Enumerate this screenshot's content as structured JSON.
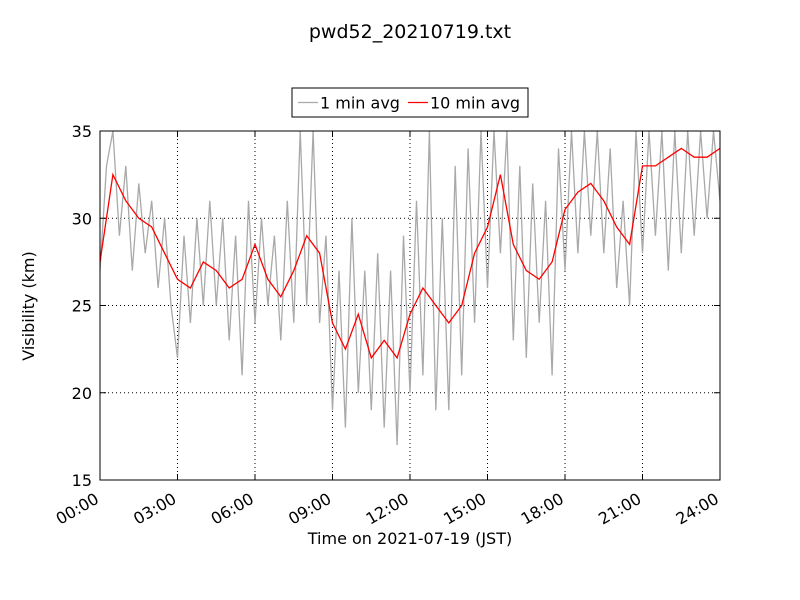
{
  "chart_data": {
    "type": "line",
    "title": "pwd52_20210719.txt",
    "xlabel": "Time on 2021-07-19 (JST)",
    "ylabel": "Visibility (km)",
    "xlim": [
      0,
      24
    ],
    "ylim": [
      15,
      35
    ],
    "xticks": [
      {
        "value": 0,
        "label": "00:00"
      },
      {
        "value": 3,
        "label": "03:00"
      },
      {
        "value": 6,
        "label": "06:00"
      },
      {
        "value": 9,
        "label": "09:00"
      },
      {
        "value": 12,
        "label": "12:00"
      },
      {
        "value": 15,
        "label": "15:00"
      },
      {
        "value": 18,
        "label": "18:00"
      },
      {
        "value": 21,
        "label": "21:00"
      },
      {
        "value": 24,
        "label": "24:00"
      }
    ],
    "yticks": [
      15,
      20,
      25,
      30,
      35
    ],
    "grid": true,
    "legend": "top",
    "series": [
      {
        "name": "1 min avg",
        "color": "#a9a9a9",
        "x": [
          0,
          0.25,
          0.5,
          0.75,
          1,
          1.25,
          1.5,
          1.75,
          2,
          2.25,
          2.5,
          2.75,
          3,
          3.25,
          3.5,
          3.75,
          4,
          4.25,
          4.5,
          4.75,
          5,
          5.25,
          5.5,
          5.75,
          6,
          6.25,
          6.5,
          6.75,
          7,
          7.25,
          7.5,
          7.75,
          8,
          8.25,
          8.5,
          8.75,
          9,
          9.25,
          9.5,
          9.75,
          10,
          10.25,
          10.5,
          10.75,
          11,
          11.25,
          11.5,
          11.75,
          12,
          12.25,
          12.5,
          12.75,
          13,
          13.25,
          13.5,
          13.75,
          14,
          14.25,
          14.5,
          14.75,
          15,
          15.25,
          15.5,
          15.75,
          16,
          16.25,
          16.5,
          16.75,
          17,
          17.25,
          17.5,
          17.75,
          18,
          18.25,
          18.5,
          18.75,
          19,
          19.25,
          19.5,
          19.75,
          20,
          20.25,
          20.5,
          20.75,
          21,
          21.25,
          21.5,
          21.75,
          22,
          22.25,
          22.5,
          22.75,
          23,
          23.25,
          23.5,
          23.75,
          24
        ],
        "values": [
          27,
          33,
          35,
          29,
          33,
          27,
          32,
          28,
          31,
          26,
          30,
          25,
          22,
          29,
          24,
          30,
          25,
          31,
          25,
          30,
          23,
          29,
          21,
          31,
          24,
          30,
          25,
          29,
          23,
          31,
          24,
          35,
          25,
          35,
          24,
          29,
          19,
          27,
          18,
          30,
          20,
          27,
          19,
          28,
          18,
          27,
          17,
          29,
          20,
          31,
          21,
          35,
          19,
          30,
          19,
          33,
          21,
          34,
          24,
          35,
          26,
          35,
          28,
          35,
          23,
          33,
          22,
          32,
          24,
          31,
          21,
          34,
          27,
          35,
          28,
          35,
          29,
          35,
          28,
          34,
          26,
          31,
          25,
          35,
          28,
          35,
          29,
          35,
          27,
          35,
          28,
          35,
          29,
          35,
          30,
          35,
          31
        ]
      },
      {
        "name": "10 min avg",
        "color": "#ff0000",
        "x": [
          0,
          0.5,
          1,
          1.5,
          2,
          2.5,
          3,
          3.5,
          4,
          4.5,
          5,
          5.5,
          6,
          6.5,
          7,
          7.5,
          8,
          8.5,
          9,
          9.5,
          10,
          10.5,
          11,
          11.5,
          12,
          12.5,
          13,
          13.5,
          14,
          14.5,
          15,
          15.5,
          16,
          16.5,
          17,
          17.5,
          18,
          18.5,
          19,
          19.5,
          20,
          20.5,
          21,
          21.5,
          22,
          22.5,
          23,
          23.5,
          24
        ],
        "values": [
          27.5,
          32.5,
          31,
          30,
          29.5,
          28,
          26.5,
          26,
          27.5,
          27,
          26,
          26.5,
          28.5,
          26.5,
          25.5,
          27,
          29,
          28,
          24,
          22.5,
          24.5,
          22,
          23,
          22,
          24.5,
          26,
          25,
          24,
          25,
          28,
          29.5,
          32.5,
          28.5,
          27,
          26.5,
          27.5,
          30.5,
          31.5,
          32,
          31,
          29.5,
          28.5,
          33,
          33,
          33.5,
          34,
          33.5,
          33.5,
          34
        ]
      }
    ]
  }
}
